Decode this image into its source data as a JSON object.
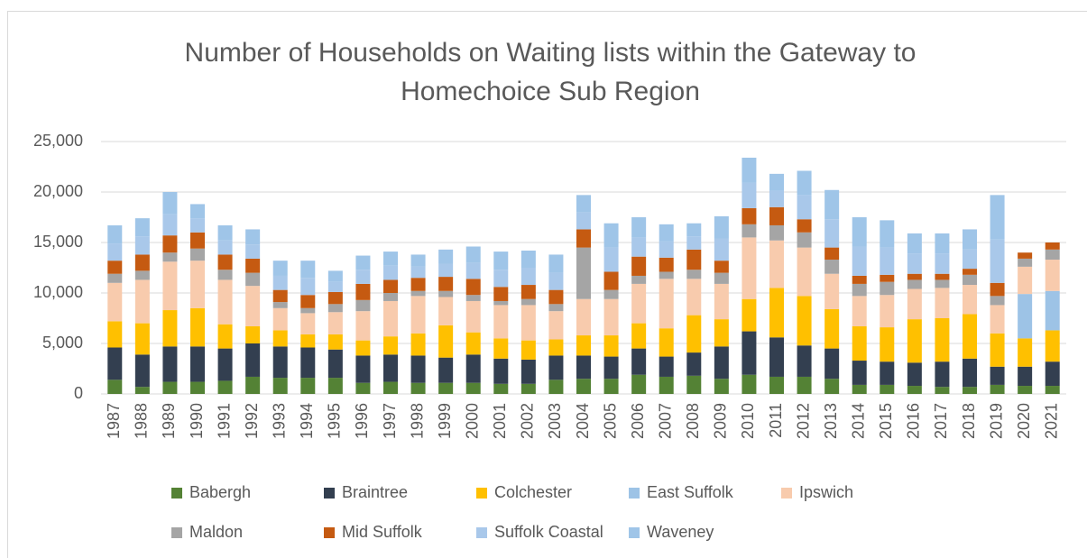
{
  "chart_data": {
    "type": "stacked_bar",
    "title": [
      "Number of Households on Waiting lists within the Gateway to",
      "Homechoice Sub Region"
    ],
    "categories": [
      "1987",
      "1988",
      "1989",
      "1990",
      "1991",
      "1992",
      "1993",
      "1994",
      "1995",
      "1996",
      "1997",
      "1998",
      "1999",
      "2000",
      "2001",
      "2002",
      "2003",
      "2004",
      "2005",
      "2006",
      "2007",
      "2008",
      "2009",
      "2010",
      "2011",
      "2012",
      "2013",
      "2014",
      "2015",
      "2016",
      "2017",
      "2018",
      "2019",
      "2020",
      "2021"
    ],
    "ylim": [
      0,
      25000
    ],
    "yticks": [
      0,
      {
        "value": 5000,
        "label": "5,000"
      },
      {
        "value": 10000,
        "label": "10,000"
      },
      {
        "value": 15000,
        "label": "15,000"
      },
      {
        "value": 20000,
        "label": "20,000"
      },
      {
        "value": 25000,
        "label": "25,000"
      }
    ],
    "grid": true,
    "legend": "bottom",
    "series": [
      {
        "name": "Babergh",
        "color": "#548235",
        "values": [
          1400,
          700,
          1200,
          1200,
          1300,
          1700,
          1600,
          1600,
          1600,
          1100,
          1200,
          1100,
          1100,
          1100,
          1000,
          1000,
          1400,
          1500,
          1500,
          1900,
          1700,
          1800,
          1500,
          1900,
          1700,
          1700,
          1500,
          900,
          900,
          800,
          700,
          700,
          900,
          800,
          800
        ]
      },
      {
        "name": "Braintree",
        "color": "#333f50",
        "values": [
          3200,
          3200,
          3500,
          3500,
          3200,
          3300,
          3100,
          3000,
          2800,
          2700,
          2700,
          2700,
          2500,
          2800,
          2500,
          2400,
          2400,
          2300,
          2200,
          2600,
          2000,
          2300,
          3200,
          4300,
          3900,
          3100,
          3000,
          2400,
          2300,
          2300,
          2500,
          2800,
          1800,
          1900,
          2400
        ]
      },
      {
        "name": "Colchester",
        "color": "#ffc000",
        "values": [
          2600,
          3100,
          3600,
          3800,
          2400,
          1700,
          1600,
          1300,
          1500,
          1500,
          1800,
          2200,
          3200,
          2200,
          2000,
          1900,
          1600,
          2000,
          2100,
          2500,
          2800,
          3700,
          2700,
          3200,
          4900,
          4900,
          3900,
          3400,
          3400,
          4300,
          4300,
          4400,
          3300,
          2800,
          3100
        ]
      },
      {
        "name": "East Suffolk",
        "color": "#9dc3e6",
        "values": [
          0,
          0,
          0,
          0,
          0,
          0,
          0,
          0,
          0,
          0,
          0,
          0,
          0,
          0,
          0,
          0,
          0,
          0,
          0,
          0,
          0,
          0,
          0,
          0,
          0,
          0,
          0,
          0,
          0,
          0,
          0,
          0,
          0,
          4400,
          3900
        ]
      },
      {
        "name": "Ipswich",
        "color": "#f8cbad",
        "values": [
          3800,
          4300,
          4800,
          4700,
          4400,
          4000,
          2200,
          2100,
          2200,
          2900,
          3500,
          3700,
          2800,
          3100,
          3300,
          3500,
          2800,
          3600,
          3600,
          3900,
          4900,
          3600,
          3500,
          6100,
          4700,
          4800,
          3500,
          3000,
          3200,
          3000,
          3000,
          2900,
          2800,
          2700,
          3100
        ]
      },
      {
        "name": "Maldon",
        "color": "#a5a5a5",
        "values": [
          900,
          900,
          900,
          1200,
          1000,
          1300,
          600,
          500,
          800,
          1100,
          800,
          500,
          600,
          600,
          400,
          600,
          700,
          5100,
          900,
          800,
          700,
          900,
          1100,
          1300,
          1500,
          1500,
          1400,
          1200,
          1300,
          900,
          800,
          1000,
          900,
          800,
          1000
        ]
      },
      {
        "name": "Mid Suffolk",
        "color": "#c55a11",
        "values": [
          1300,
          1600,
          1700,
          1600,
          1500,
          1400,
          1200,
          1300,
          1200,
          1600,
          1300,
          1300,
          1400,
          1600,
          1400,
          1400,
          1400,
          1800,
          1800,
          1900,
          1400,
          2000,
          1200,
          1600,
          1800,
          1300,
          1200,
          800,
          700,
          600,
          600,
          600,
          1300,
          600,
          700
        ]
      },
      {
        "name": "Suffolk Coastal",
        "color": "#a9c8ea",
        "values": [
          1700,
          1800,
          2100,
          1400,
          1400,
          1400,
          1400,
          1700,
          1000,
          1400,
          1400,
          1100,
          1300,
          1600,
          1700,
          1700,
          1700,
          1700,
          2400,
          1900,
          1600,
          1300,
          2200,
          2500,
          1600,
          2400,
          2800,
          2900,
          2700,
          2000,
          2000,
          1900,
          4300,
          0,
          0
        ]
      },
      {
        "name": "Waveney",
        "color": "#9fc5e8",
        "values": [
          1800,
          1800,
          2200,
          1400,
          1500,
          1500,
          1500,
          1700,
          1100,
          1400,
          1400,
          1200,
          1400,
          1600,
          1800,
          1700,
          1800,
          1700,
          2400,
          2000,
          1700,
          1300,
          2200,
          2500,
          1700,
          2400,
          2900,
          2900,
          2700,
          2000,
          2000,
          2000,
          4400,
          0,
          0
        ]
      }
    ]
  }
}
